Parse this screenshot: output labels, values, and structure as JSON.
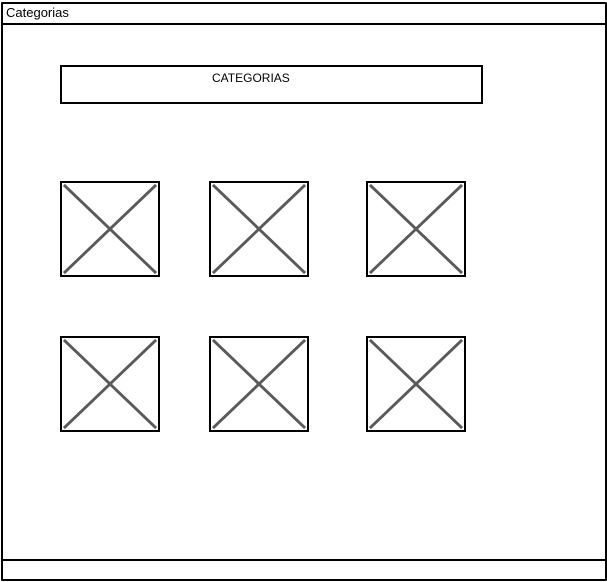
{
  "window": {
    "title": "Categorias"
  },
  "header": {
    "heading": "CATEGORIAS"
  },
  "categories": {
    "items": [
      {
        "icon": "image-placeholder-icon"
      },
      {
        "icon": "image-placeholder-icon"
      },
      {
        "icon": "image-placeholder-icon"
      },
      {
        "icon": "image-placeholder-icon"
      },
      {
        "icon": "image-placeholder-icon"
      },
      {
        "icon": "image-placeholder-icon"
      }
    ]
  },
  "colors": {
    "border": "#000000",
    "placeholder_cross": "#5a5a5a",
    "background": "#ffffff"
  }
}
